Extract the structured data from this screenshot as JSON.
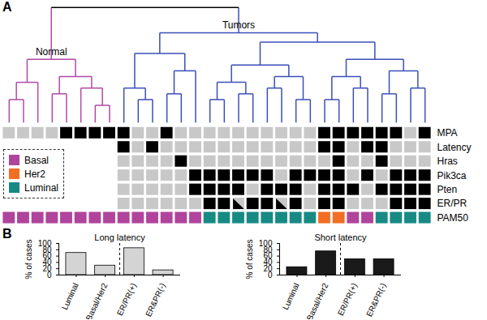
{
  "chart_data": [
    {
      "type": "clustered_heatmap",
      "panel": "A",
      "legend": "bottom-left",
      "state_colors": [
        "#c8c8c8",
        "#000000"
      ],
      "subtypes": [
        {
          "name": "Basal",
          "color": "#b0449c"
        },
        {
          "name": "Her2",
          "color": "#f26e22"
        },
        {
          "name": "Luminal",
          "color": "#178a83"
        }
      ],
      "dendrogram": {
        "color": "#000000",
        "height": 1.0,
        "children": [
          {
            "label": "Normal",
            "color": "#b04aa6",
            "height": 0.55,
            "children": [
              {
                "height": 0.35,
                "children": [
                  {
                    "height": 0.2,
                    "children": [
                      0,
                      1
                    ]
                  },
                  2
                ]
              },
              {
                "height": 0.4,
                "children": [
                  {
                    "height": 0.25,
                    "children": [
                      3,
                      4
                    ]
                  },
                  {
                    "height": 0.3,
                    "children": [
                      5,
                      {
                        "height": 0.15,
                        "children": [
                          6,
                          7
                        ]
                      }
                    ]
                  }
                ]
              }
            ]
          },
          {
            "label": "Tumors",
            "color": "#3b4fb8",
            "height": 0.78,
            "children": [
              {
                "height": 0.6,
                "children": [
                  {
                    "height": 0.3,
                    "children": [
                      8,
                      {
                        "height": 0.2,
                        "children": [
                          9,
                          10
                        ]
                      }
                    ]
                  },
                  {
                    "height": 0.45,
                    "children": [
                      {
                        "height": 0.25,
                        "children": [
                          11,
                          12
                        ]
                      },
                      13
                    ]
                  }
                ]
              },
              {
                "height": 0.7,
                "children": [
                  {
                    "height": 0.5,
                    "children": [
                      {
                        "height": 0.35,
                        "children": [
                          {
                            "height": 0.2,
                            "children": [
                              14,
                              15
                            ]
                          },
                          {
                            "height": 0.25,
                            "children": [
                              16,
                              17
                            ]
                          }
                        ]
                      },
                      {
                        "height": 0.4,
                        "children": [
                          {
                            "height": 0.3,
                            "children": [
                              18,
                              19
                            ]
                          },
                          {
                            "height": 0.2,
                            "children": [
                              20,
                              21
                            ]
                          }
                        ]
                      }
                    ]
                  },
                  {
                    "height": 0.55,
                    "children": [
                      {
                        "height": 0.4,
                        "children": [
                          {
                            "height": 0.2,
                            "children": [
                              22,
                              23
                            ]
                          },
                          {
                            "height": 0.3,
                            "children": [
                              24,
                              25
                            ]
                          }
                        ]
                      },
                      {
                        "height": 0.45,
                        "children": [
                          {
                            "height": 0.25,
                            "children": [
                              26,
                              27
                            ]
                          },
                          {
                            "height": 0.3,
                            "children": [
                              28,
                              29
                            ]
                          }
                        ]
                      }
                    ]
                  }
                ]
              }
            ]
          }
        ]
      },
      "rows": [
        {
          "name": "MPA",
          "values": [
            0,
            0,
            0,
            0,
            1,
            1,
            1,
            1,
            1,
            0,
            0,
            1,
            0,
            0,
            0,
            0,
            0,
            0,
            0,
            0,
            0,
            0,
            1,
            1,
            1,
            1,
            1,
            1,
            0,
            1
          ]
        },
        {
          "name": "Latency",
          "values": [
            null,
            null,
            null,
            null,
            null,
            null,
            null,
            null,
            1,
            0,
            1,
            0,
            0,
            0,
            0,
            0,
            0,
            0,
            0,
            0,
            0,
            0,
            1,
            1,
            0,
            1,
            1,
            0,
            0,
            0
          ]
        },
        {
          "name": "Hras",
          "values": [
            null,
            null,
            null,
            null,
            null,
            null,
            null,
            null,
            0,
            0,
            0,
            0,
            1,
            0,
            0,
            0,
            0,
            0,
            0,
            0,
            0,
            0,
            0,
            1,
            0,
            0,
            1,
            0,
            0,
            0
          ]
        },
        {
          "name": "Pik3ca",
          "values": [
            null,
            null,
            null,
            null,
            null,
            null,
            null,
            null,
            0,
            0,
            0,
            0,
            0,
            1,
            1,
            1,
            1,
            1,
            1,
            0,
            1,
            1,
            1,
            1,
            0,
            1,
            0,
            1,
            1,
            1
          ]
        },
        {
          "name": "Pten",
          "values": [
            null,
            null,
            null,
            null,
            null,
            null,
            null,
            null,
            0,
            0,
            0,
            0,
            0,
            1,
            1,
            1,
            1,
            0,
            1,
            1,
            1,
            0,
            1,
            1,
            1,
            0,
            1,
            1,
            1,
            1
          ]
        },
        {
          "name": "ER/PR",
          "values": [
            null,
            null,
            null,
            null,
            null,
            null,
            null,
            null,
            0,
            0,
            0,
            0,
            0,
            0,
            1,
            1,
            0.5,
            1,
            1,
            0.5,
            1,
            0,
            1,
            1,
            0,
            0,
            0,
            1,
            1,
            1
          ]
        },
        {
          "name": "PAM50",
          "values": [
            "Basal",
            "Basal",
            "Basal",
            "Basal",
            "Basal",
            "Basal",
            "Basal",
            "Basal",
            "Basal",
            "Basal",
            "Basal",
            "Basal",
            "Basal",
            "Basal",
            "Luminal",
            "Luminal",
            "Luminal",
            "Luminal",
            "Luminal",
            "Luminal",
            "Luminal",
            "Luminal",
            "Her2",
            "Her2",
            "Basal",
            "Basal",
            "Luminal",
            "Luminal",
            "Luminal",
            "Luminal"
          ]
        }
      ]
    },
    {
      "type": "bar",
      "panel": "B",
      "title": "Long latency",
      "y_label": "% of cases",
      "categories": [
        "Luminal",
        "Basal/Her2",
        "ER/PR(+)",
        "ER&PR(-)"
      ],
      "values": [
        70,
        30,
        85,
        15
      ],
      "color": "#d4d4d4",
      "ylim": [
        0,
        100
      ],
      "yticks": [
        0,
        20,
        40,
        60,
        80,
        100
      ]
    },
    {
      "type": "bar",
      "title": "Short latency",
      "y_label": "% of cases",
      "categories": [
        "Luminal",
        "Basal/Her2",
        "ER/PR(+)",
        "ER&PR(-)"
      ],
      "values": [
        25,
        75,
        50,
        50
      ],
      "color": "#1a1a1a",
      "ylim": [
        0,
        100
      ],
      "yticks": [
        0,
        20,
        40,
        60,
        80,
        100
      ]
    }
  ]
}
